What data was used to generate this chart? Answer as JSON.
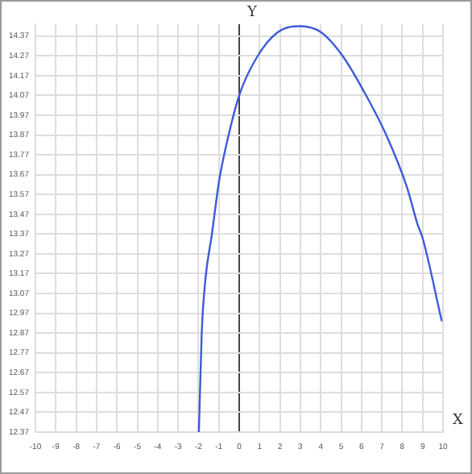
{
  "chart_data": {
    "type": "line",
    "xlabel": "X",
    "ylabel": "Y",
    "x": [
      -1.98,
      -1.84,
      -1.66,
      -1.34,
      -1.0,
      -0.74,
      0,
      0.85,
      1.9,
      3,
      4.0,
      5.07,
      6.12,
      7.17,
      8.22,
      8.75,
      9.0,
      9.94
    ],
    "series": [
      {
        "color": "#3d5bd9",
        "values": [
          12.37,
          12.87,
          13.14,
          13.37,
          13.63,
          13.77,
          14.07,
          14.26,
          14.39,
          14.42,
          14.39,
          14.27,
          14.09,
          13.88,
          13.61,
          13.42,
          13.35,
          12.93
        ]
      }
    ],
    "xlim": [
      -10,
      10
    ],
    "xticks": [
      -10,
      -9,
      -8,
      -7,
      -6,
      -5,
      -4,
      -3,
      -2,
      -1,
      0,
      1,
      2,
      3,
      4,
      5,
      6,
      7,
      8,
      9,
      10
    ],
    "ylim": [
      12.37,
      14.43
    ],
    "yticks": [
      12.37,
      12.47,
      12.57,
      12.67,
      12.77,
      12.87,
      12.97,
      13.07,
      13.17,
      13.27,
      13.37,
      13.47,
      13.57,
      13.67,
      13.77,
      13.87,
      13.97,
      14.07,
      14.17,
      14.27,
      14.37
    ],
    "grid": true,
    "legend": false,
    "marker": "none",
    "line_style": "solid"
  }
}
